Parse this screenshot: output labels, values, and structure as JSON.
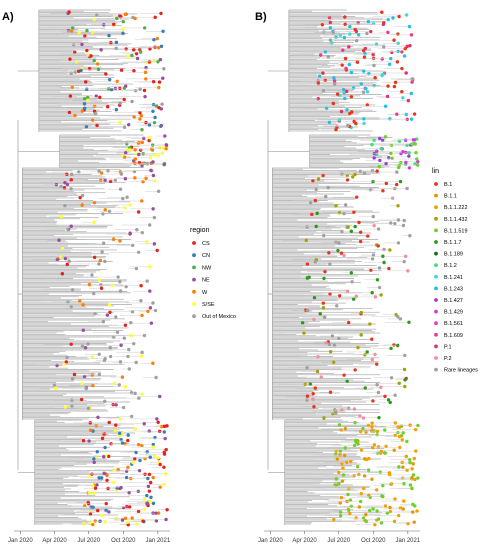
{
  "chart_data": [
    {
      "type": "scatter",
      "panel_label": "A)",
      "description_type": "phylogenetic time tree with colored tips",
      "x_axis": {
        "type": "date",
        "ticks": [
          "Jan 2020",
          "Apr 2020",
          "Jul 2020",
          "Oct 2020",
          "Jan 2021"
        ],
        "range": [
          "2019-12-15",
          "2021-03-01"
        ]
      },
      "legend": {
        "title": "region",
        "placement": "right",
        "entries": [
          {
            "label": "CS",
            "color": "#e8211c"
          },
          {
            "label": "CN",
            "color": "#377eb8"
          },
          {
            "label": "NW",
            "color": "#4daf4a"
          },
          {
            "label": "NE",
            "color": "#984ea3"
          },
          {
            "label": "W",
            "color": "#ff7f00"
          },
          {
            "label": "S/SE",
            "color": "#ffff33"
          },
          {
            "label": "Out of Mexico",
            "color": "#a0a0a0"
          }
        ]
      }
    },
    {
      "type": "scatter",
      "panel_label": "B)",
      "description_type": "phylogenetic time tree with colored tips",
      "x_axis": {
        "type": "date",
        "ticks": [
          "Jan 2020",
          "Apr 2020",
          "Jul 2020",
          "Oct 2020",
          "Jan 2021"
        ],
        "range": [
          "2019-12-15",
          "2021-03-01"
        ]
      },
      "legend": {
        "title": "lin",
        "placement": "right",
        "entries": [
          {
            "label": "B.1",
            "color": "#e8351c"
          },
          {
            "label": "B.1.1",
            "color": "#e69500"
          },
          {
            "label": "B.1.1.222",
            "color": "#f5a000"
          },
          {
            "label": "B.1.1.432",
            "color": "#a8a000"
          },
          {
            "label": "B.1.1.519",
            "color": "#6cd12a"
          },
          {
            "label": "B.1.1.7",
            "color": "#2a9a1a"
          },
          {
            "label": "B.1.189",
            "color": "#1a6a1a"
          },
          {
            "label": "B.1.2",
            "color": "#40e080"
          },
          {
            "label": "B.1.241",
            "color": "#40d8d8"
          },
          {
            "label": "B.1.243",
            "color": "#20c0e0"
          },
          {
            "label": "B.1.427",
            "color": "#9a40d8"
          },
          {
            "label": "B.1.429",
            "color": "#d040d8"
          },
          {
            "label": "B.1.561",
            "color": "#e040c0"
          },
          {
            "label": "B.1.609",
            "color": "#e83c8c"
          },
          {
            "label": "P.1",
            "color": "#e83060"
          },
          {
            "label": "P.2",
            "color": "#f090a0"
          },
          {
            "label": "Rare lineages",
            "color": "#a0a0a0"
          }
        ]
      }
    }
  ]
}
